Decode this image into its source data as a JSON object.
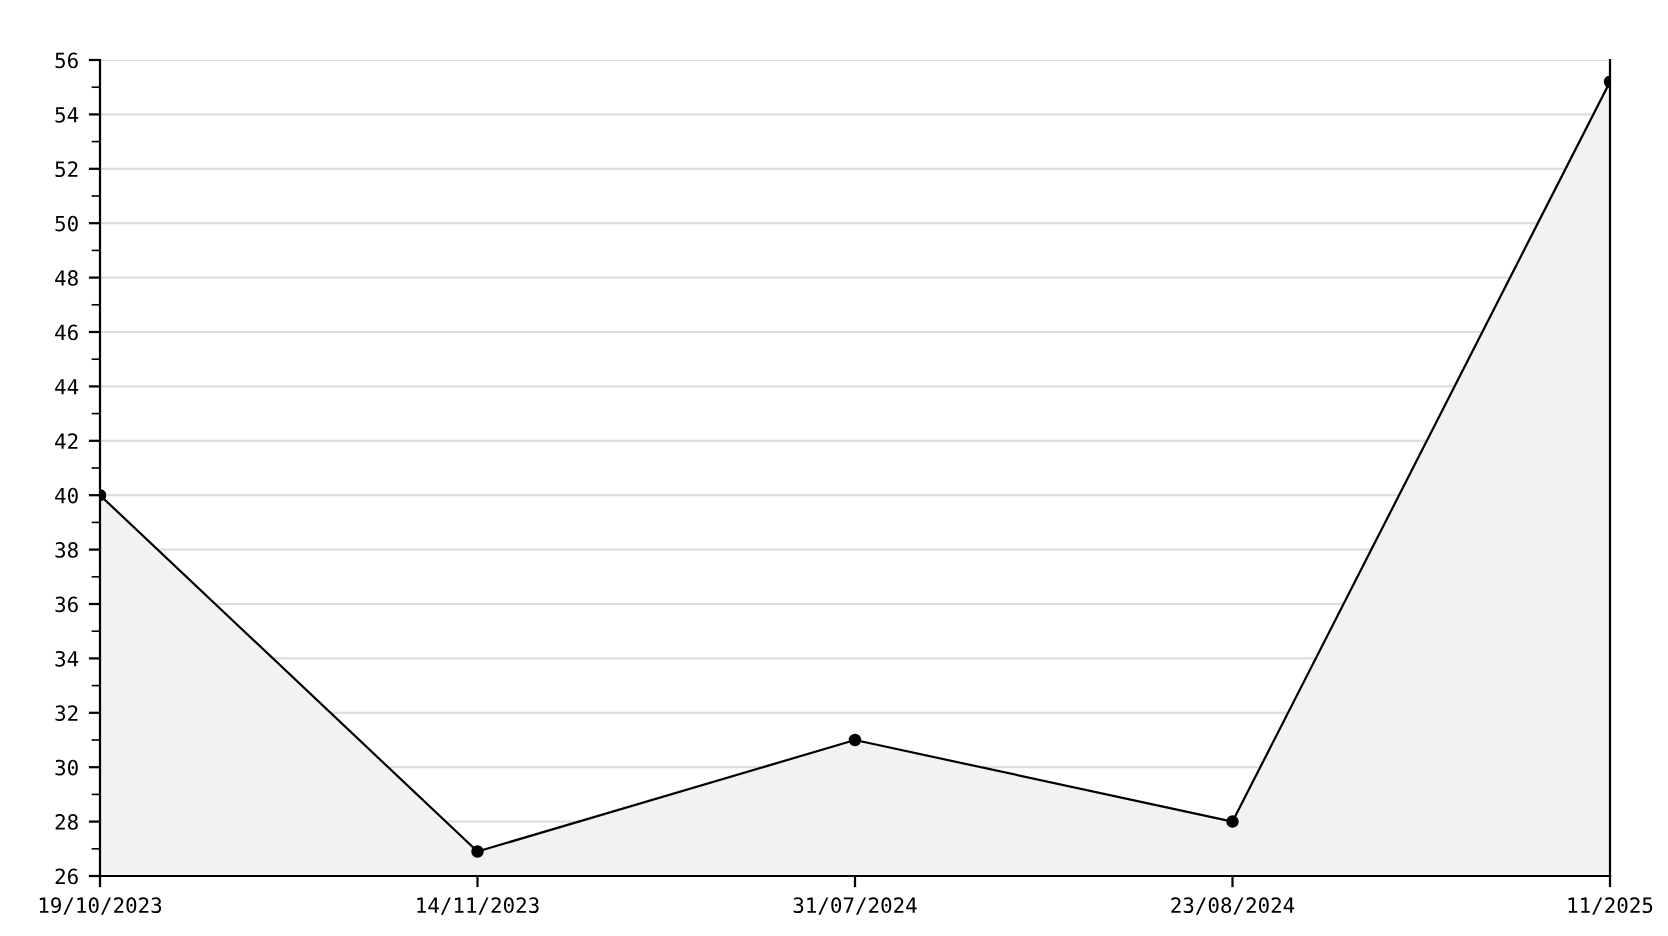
{
  "chart_data": {
    "type": "area",
    "categories": [
      "19/10/2023",
      "14/11/2023",
      "31/07/2024",
      "23/08/2024",
      "11/2025"
    ],
    "series": [
      {
        "color": "#000000",
        "values": [
          40,
          26.9,
          31,
          28,
          55.2
        ]
      }
    ],
    "ylim": [
      26,
      56
    ],
    "yticks": [
      26,
      28,
      30,
      32,
      34,
      36,
      38,
      40,
      42,
      44,
      46,
      48,
      50,
      52,
      54,
      56
    ],
    "grid": "y",
    "marker": "circle",
    "line_style": "solid"
  }
}
